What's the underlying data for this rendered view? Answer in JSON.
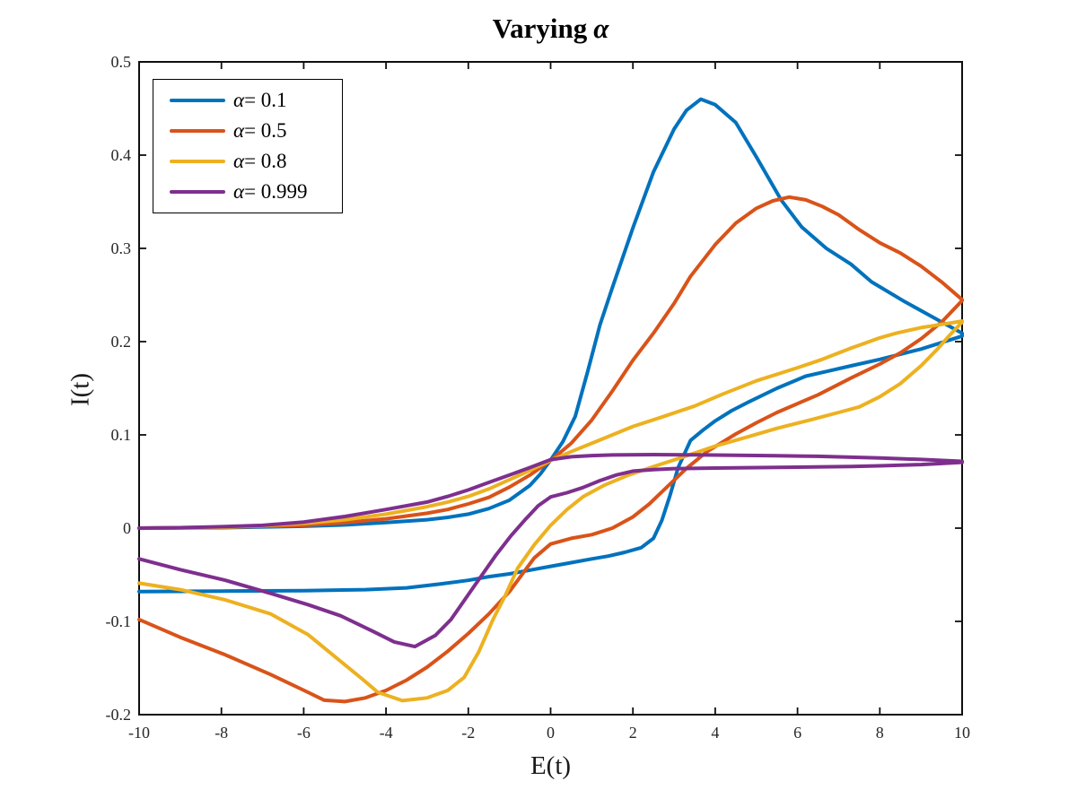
{
  "title": {
    "text": "Varying",
    "symbol": "α"
  },
  "chart_data": {
    "type": "line",
    "title": "Varying α",
    "xlabel": "E(t)",
    "ylabel": "I(t)",
    "xlim": [
      -10,
      10
    ],
    "ylim": [
      -0.2,
      0.5
    ],
    "x_ticks": [
      "-10",
      "-8",
      "-6",
      "-4",
      "-2",
      "0",
      "2",
      "4",
      "6",
      "8",
      "10"
    ],
    "y_ticks": [
      "-0.2",
      "-0.1",
      "0",
      "0.1",
      "0.2",
      "0.3",
      "0.4",
      "0.5"
    ],
    "grid": false,
    "legend_position": "top-left",
    "frame_color": "#0f0f0f",
    "tick_label_color": "#262626",
    "series": [
      {
        "id": "alpha-0.1",
        "label_symbol": "α",
        "label_rest": "= 0.1",
        "color": "#0072BD",
        "note": "closed loop: forward sweep then return sweep",
        "forward": [
          [
            -10,
            0
          ],
          [
            -8,
            0.0005
          ],
          [
            -6,
            0.002
          ],
          [
            -5,
            0.0035
          ],
          [
            -4,
            0.006
          ],
          [
            -3,
            0.009
          ],
          [
            -2.5,
            0.0115
          ],
          [
            -2,
            0.015
          ],
          [
            -1.5,
            0.021
          ],
          [
            -1,
            0.03
          ],
          [
            -0.5,
            0.046
          ],
          [
            -0.25,
            0.058
          ],
          [
            0,
            0.073
          ],
          [
            0.3,
            0.093
          ],
          [
            0.6,
            0.12
          ],
          [
            0.9,
            0.168
          ],
          [
            1.2,
            0.218
          ],
          [
            1.5,
            0.258
          ],
          [
            2,
            0.322
          ],
          [
            2.5,
            0.382
          ],
          [
            3,
            0.428
          ],
          [
            3.3,
            0.448
          ],
          [
            3.65,
            0.46
          ],
          [
            4,
            0.454
          ],
          [
            4.5,
            0.435
          ],
          [
            5,
            0.398
          ],
          [
            5.6,
            0.352
          ],
          [
            6.1,
            0.323
          ],
          [
            6.7,
            0.3
          ],
          [
            7.3,
            0.283
          ],
          [
            7.8,
            0.264
          ],
          [
            8.6,
            0.243
          ],
          [
            9.3,
            0.226
          ],
          [
            10,
            0.209
          ]
        ],
        "return": [
          [
            10,
            0.206
          ],
          [
            9,
            0.192
          ],
          [
            8,
            0.181
          ],
          [
            7.3,
            0.174
          ],
          [
            6.7,
            0.168
          ],
          [
            6.2,
            0.163
          ],
          [
            5.5,
            0.15
          ],
          [
            4.8,
            0.135
          ],
          [
            4.4,
            0.126
          ],
          [
            4,
            0.115
          ],
          [
            3.7,
            0.105
          ],
          [
            3.4,
            0.094
          ],
          [
            3.1,
            0.065
          ],
          [
            2.9,
            0.035
          ],
          [
            2.7,
            0.008
          ],
          [
            2.5,
            -0.011
          ],
          [
            2.2,
            -0.021
          ],
          [
            1.8,
            -0.026
          ],
          [
            1.4,
            -0.03
          ],
          [
            1,
            -0.033
          ],
          [
            0.5,
            -0.037
          ],
          [
            0,
            -0.041
          ],
          [
            -0.5,
            -0.045
          ],
          [
            -1,
            -0.049
          ],
          [
            -1.5,
            -0.052
          ],
          [
            -2,
            -0.056
          ],
          [
            -2.7,
            -0.06
          ],
          [
            -3.5,
            -0.064
          ],
          [
            -4.5,
            -0.066
          ],
          [
            -6,
            -0.067
          ],
          [
            -8,
            -0.0675
          ],
          [
            -10,
            -0.068
          ]
        ]
      },
      {
        "id": "alpha-0.5",
        "label_symbol": "α",
        "label_rest": "= 0.5",
        "color": "#D95319",
        "forward": [
          [
            -10,
            0
          ],
          [
            -8,
            0.001
          ],
          [
            -6,
            0.003
          ],
          [
            -5,
            0.006
          ],
          [
            -4,
            0.01
          ],
          [
            -3,
            0.016
          ],
          [
            -2.5,
            0.02
          ],
          [
            -2,
            0.026
          ],
          [
            -1.5,
            0.033
          ],
          [
            -1,
            0.044
          ],
          [
            -0.5,
            0.057
          ],
          [
            0,
            0.0725
          ],
          [
            0.5,
            0.091
          ],
          [
            1,
            0.116
          ],
          [
            1.5,
            0.147
          ],
          [
            2,
            0.18
          ],
          [
            2.5,
            0.209
          ],
          [
            3,
            0.241
          ],
          [
            3.4,
            0.27
          ],
          [
            4,
            0.304
          ],
          [
            4.5,
            0.327
          ],
          [
            5,
            0.343
          ],
          [
            5.4,
            0.351
          ],
          [
            5.8,
            0.355
          ],
          [
            6.2,
            0.352
          ],
          [
            6.6,
            0.345
          ],
          [
            7,
            0.336
          ],
          [
            7.5,
            0.32
          ],
          [
            8,
            0.306
          ],
          [
            8.5,
            0.295
          ],
          [
            9,
            0.281
          ],
          [
            9.5,
            0.264
          ],
          [
            10,
            0.245
          ]
        ],
        "return": [
          [
            10,
            0.244
          ],
          [
            9.5,
            0.221
          ],
          [
            9,
            0.203
          ],
          [
            8.5,
            0.188
          ],
          [
            8,
            0.176
          ],
          [
            7.3,
            0.161
          ],
          [
            6.5,
            0.143
          ],
          [
            5.5,
            0.124
          ],
          [
            5,
            0.113
          ],
          [
            4.5,
            0.101
          ],
          [
            3.8,
            0.082
          ],
          [
            3.3,
            0.064
          ],
          [
            2.8,
            0.043
          ],
          [
            2.4,
            0.026
          ],
          [
            2,
            0.012
          ],
          [
            1.5,
            0
          ],
          [
            1,
            -0.007
          ],
          [
            0.5,
            -0.011
          ],
          [
            0,
            -0.017
          ],
          [
            -0.4,
            -0.032
          ],
          [
            -0.7,
            -0.05
          ],
          [
            -1,
            -0.068
          ],
          [
            -1.5,
            -0.092
          ],
          [
            -2,
            -0.113
          ],
          [
            -2.5,
            -0.132
          ],
          [
            -3,
            -0.149
          ],
          [
            -3.5,
            -0.163
          ],
          [
            -4,
            -0.174
          ],
          [
            -4.5,
            -0.182
          ],
          [
            -5,
            -0.186
          ],
          [
            -5.5,
            -0.1845
          ],
          [
            -5.9,
            -0.176
          ],
          [
            -6.8,
            -0.157
          ],
          [
            -7.9,
            -0.136
          ],
          [
            -9,
            -0.117
          ],
          [
            -10,
            -0.098
          ]
        ]
      },
      {
        "id": "alpha-0.8",
        "label_symbol": "α",
        "label_rest": "= 0.8",
        "color": "#EDB120",
        "forward": [
          [
            -10,
            0
          ],
          [
            -8,
            0.001
          ],
          [
            -7,
            0.0025
          ],
          [
            -6,
            0.005
          ],
          [
            -5,
            0.009
          ],
          [
            -4,
            0.015
          ],
          [
            -3,
            0.023
          ],
          [
            -2.5,
            0.028
          ],
          [
            -2,
            0.034
          ],
          [
            -1.5,
            0.042
          ],
          [
            -1,
            0.052
          ],
          [
            -0.5,
            0.062
          ],
          [
            0,
            0.0725
          ],
          [
            0.5,
            0.082
          ],
          [
            1,
            0.091
          ],
          [
            1.5,
            0.1
          ],
          [
            2,
            0.109
          ],
          [
            2.7,
            0.119
          ],
          [
            3.5,
            0.131
          ],
          [
            4.2,
            0.144
          ],
          [
            5,
            0.158
          ],
          [
            6,
            0.172
          ],
          [
            6.6,
            0.181
          ],
          [
            7.3,
            0.193
          ],
          [
            8,
            0.204
          ],
          [
            8.4,
            0.209
          ],
          [
            9,
            0.215
          ],
          [
            9.5,
            0.2185
          ],
          [
            10,
            0.222
          ]
        ],
        "return": [
          [
            10,
            0.221
          ],
          [
            9.7,
            0.207
          ],
          [
            9.4,
            0.192
          ],
          [
            9,
            0.174
          ],
          [
            8.5,
            0.155
          ],
          [
            8,
            0.141
          ],
          [
            7.5,
            0.13
          ],
          [
            7,
            0.124
          ],
          [
            6.3,
            0.116
          ],
          [
            5.5,
            0.107
          ],
          [
            4.8,
            0.098
          ],
          [
            4,
            0.088
          ],
          [
            3.2,
            0.076
          ],
          [
            2.5,
            0.066
          ],
          [
            1.9,
            0.057
          ],
          [
            1.3,
            0.046
          ],
          [
            0.8,
            0.034
          ],
          [
            0.4,
            0.02
          ],
          [
            0,
            0.003
          ],
          [
            -0.4,
            -0.018
          ],
          [
            -0.8,
            -0.043
          ],
          [
            -1.1,
            -0.072
          ],
          [
            -1.4,
            -0.098
          ],
          [
            -1.75,
            -0.133
          ],
          [
            -2.1,
            -0.16
          ],
          [
            -2.5,
            -0.174
          ],
          [
            -3,
            -0.182
          ],
          [
            -3.6,
            -0.185
          ],
          [
            -4.2,
            -0.176
          ],
          [
            -4.6,
            -0.161
          ],
          [
            -5.1,
            -0.143
          ],
          [
            -5.9,
            -0.114
          ],
          [
            -6.8,
            -0.092
          ],
          [
            -7.9,
            -0.077
          ],
          [
            -9,
            -0.066
          ],
          [
            -10,
            -0.059
          ]
        ]
      },
      {
        "id": "alpha-0.999",
        "label_symbol": "α",
        "label_rest": "= 0.999",
        "color": "#7E2F8E",
        "forward": [
          [
            -10,
            0
          ],
          [
            -9,
            0.0005
          ],
          [
            -8,
            0.0015
          ],
          [
            -7,
            0.003
          ],
          [
            -6,
            0.0065
          ],
          [
            -5,
            0.0125
          ],
          [
            -4,
            0.02
          ],
          [
            -3,
            0.028
          ],
          [
            -2.5,
            0.034
          ],
          [
            -2,
            0.041
          ],
          [
            -1.5,
            0.049
          ],
          [
            -1,
            0.057
          ],
          [
            -0.5,
            0.065
          ],
          [
            0,
            0.0735
          ],
          [
            0.5,
            0.0765
          ],
          [
            1,
            0.0778
          ],
          [
            1.5,
            0.0785
          ],
          [
            2.5,
            0.0788
          ],
          [
            3.5,
            0.0786
          ],
          [
            4.5,
            0.0781
          ],
          [
            5.5,
            0.0776
          ],
          [
            6.5,
            0.077
          ],
          [
            7.3,
            0.0761
          ],
          [
            8,
            0.0752
          ],
          [
            9,
            0.0737
          ],
          [
            10,
            0.0716
          ]
        ],
        "return": [
          [
            10,
            0.0706
          ],
          [
            9,
            0.0682
          ],
          [
            8,
            0.0668
          ],
          [
            7.3,
            0.0662
          ],
          [
            6,
            0.0654
          ],
          [
            5,
            0.0649
          ],
          [
            4,
            0.0644
          ],
          [
            3,
            0.0638
          ],
          [
            2.5,
            0.0628
          ],
          [
            2,
            0.0612
          ],
          [
            1.6,
            0.057
          ],
          [
            1.2,
            0.051
          ],
          [
            0.78,
            0.0435
          ],
          [
            0.4,
            0.038
          ],
          [
            0,
            0.0335
          ],
          [
            -0.3,
            0.024
          ],
          [
            -0.6,
            0.01
          ],
          [
            -0.96,
            -0.008
          ],
          [
            -1.33,
            -0.029
          ],
          [
            -1.87,
            -0.063
          ],
          [
            -2.42,
            -0.098
          ],
          [
            -2.8,
            -0.115
          ],
          [
            -3.3,
            -0.127
          ],
          [
            -3.8,
            -0.122
          ],
          [
            -4.3,
            -0.111
          ],
          [
            -5.1,
            -0.094
          ],
          [
            -5.9,
            -0.082
          ],
          [
            -6.8,
            -0.07
          ],
          [
            -7.9,
            -0.056
          ],
          [
            -9,
            -0.0445
          ],
          [
            -10,
            -0.033
          ]
        ]
      }
    ]
  }
}
